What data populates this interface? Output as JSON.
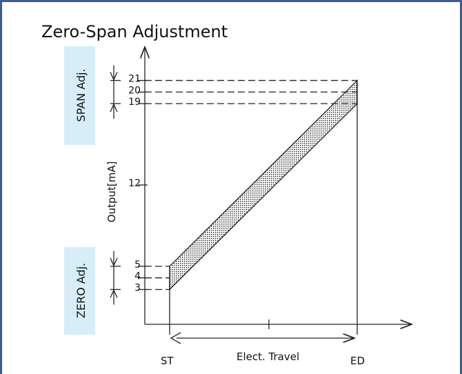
{
  "title": "Zero-Span Adjustment",
  "y_axis_label": "Output[mA]",
  "span_label": "SPAN Adj.",
  "zero_label": "ZERO Adj.",
  "y_ticks": [
    21,
    20,
    19,
    12,
    5,
    4,
    3
  ],
  "x_labels": {
    "start": "ST",
    "travel": "Elect. Travel",
    "end": "ED"
  }
}
